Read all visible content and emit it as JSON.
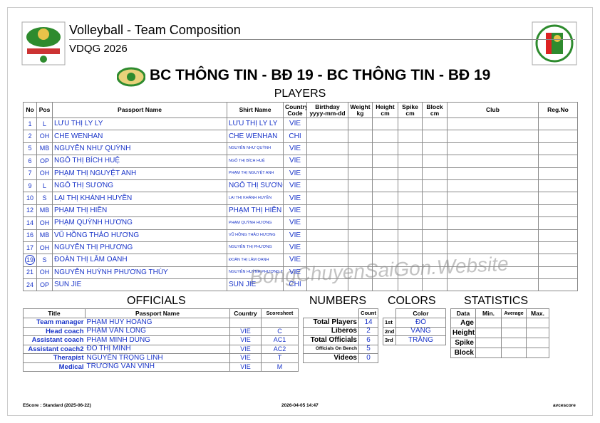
{
  "header": {
    "title": "Volleyball - Team Composition",
    "subtitle": "VDQG 2026",
    "team": "BC THÔNG TIN - BĐ 19 - BC THÔNG TIN - BĐ 19"
  },
  "players": {
    "title": "PLAYERS",
    "columns": [
      "No",
      "Pos",
      "Passport Name",
      "Shirt Name",
      "Country Code",
      "Birthday yyyy-mm-dd",
      "Weight kg",
      "Height cm",
      "Spike cm",
      "Block cm",
      "Club",
      "Reg.No"
    ],
    "rows": [
      {
        "no": 1,
        "pos": "L",
        "passport_name": "LƯU THỊ LY LY",
        "shirt_name": "LƯU THỊ LY LY",
        "country": "VIE"
      },
      {
        "no": 2,
        "pos": "OH",
        "passport_name": "CHE WENHAN",
        "shirt_name": "CHE WENHAN",
        "country": "CHI"
      },
      {
        "no": 5,
        "pos": "MB",
        "passport_name": "NGUYỄN NHƯ QUỲNH",
        "shirt_name": "NGUYỄN NHƯ QUỲNH",
        "country": "VIE"
      },
      {
        "no": 6,
        "pos": "OP",
        "passport_name": "NGÔ THỊ BÍCH HUỆ",
        "shirt_name": "NGÔ THỊ BÍCH HUỆ",
        "country": "VIE"
      },
      {
        "no": 7,
        "pos": "OH",
        "passport_name": "PHẠM THỊ NGUYỆT ANH",
        "shirt_name": "PHẠM THỊ NGUYỆT ANH",
        "country": "VIE"
      },
      {
        "no": 9,
        "pos": "L",
        "passport_name": "NGÔ THỊ SƯƠNG",
        "shirt_name": "NGÔ THỊ SƯƠNG",
        "country": "VIE"
      },
      {
        "no": 10,
        "pos": "S",
        "passport_name": "LẠI THỊ KHÁNH HUYỀN",
        "shirt_name": "LẠI THỊ KHÁNH HUYỀN",
        "country": "VIE"
      },
      {
        "no": 12,
        "pos": "MB",
        "passport_name": "PHẠM THỊ HIỀN",
        "shirt_name": "PHẠM THỊ HIỀN",
        "country": "VIE"
      },
      {
        "no": 14,
        "pos": "OH",
        "passport_name": "PHẠM QUỲNH HƯƠNG",
        "shirt_name": "PHẠM QUỲNH HƯƠNG",
        "country": "VIE"
      },
      {
        "no": 16,
        "pos": "MB",
        "passport_name": "VŨ HỒNG THẢO HƯƠNG",
        "shirt_name": "VŨ HỒNG THẢO HƯƠNG",
        "country": "VIE"
      },
      {
        "no": 17,
        "pos": "OH",
        "passport_name": "NGUYỄN THỊ PHƯƠNG",
        "shirt_name": "NGUYỄN THỊ PHƯƠNG",
        "country": "VIE"
      },
      {
        "no": 19,
        "pos": "S",
        "passport_name": "ĐOÀN THỊ LÂM OANH",
        "shirt_name": "ĐOÀN THỊ LÂM OANH",
        "country": "VIE",
        "captain": true
      },
      {
        "no": 21,
        "pos": "OH",
        "passport_name": "NGUYỄN HUỲNH PHƯƠNG THÙY",
        "shirt_name": "NGUYỄN HUỲNH PHƯƠNG THÙY",
        "country": "VIE"
      },
      {
        "no": 24,
        "pos": "OP",
        "passport_name": "SUN JIE",
        "shirt_name": "SUN JIE",
        "country": "CHI"
      }
    ]
  },
  "watermark": "BongChuyenSaiGon.Website",
  "officials": {
    "title": "OFFICIALS",
    "columns": [
      "Title",
      "Passport Name",
      "Country",
      "Scoresheet"
    ],
    "rows": [
      {
        "title": "Team manager",
        "passport_name": "PHẠM HUY HOÀNG"
      },
      {
        "title": "Head coach",
        "passport_name": "PHẠM VĂN LONG",
        "country": "VIE",
        "scoresheet": "C"
      },
      {
        "title": "Assistant coach",
        "passport_name": "PHẠM MINH DŨNG",
        "country": "VIE",
        "scoresheet": "AC1"
      },
      {
        "title": "Assistant coach2",
        "passport_name": "ĐỖ THỊ MINH",
        "country": "VIE",
        "scoresheet": "AC2"
      },
      {
        "title": "Therapist",
        "passport_name": "NGUYỄN TRỌNG LINH",
        "country": "VIE",
        "scoresheet": "T"
      },
      {
        "title": "Medical",
        "passport_name": "TRƯƠNG VĂN VĨNH",
        "country": "VIE",
        "scoresheet": "M"
      }
    ]
  },
  "numbers": {
    "title": "NUMBERS",
    "column": "Count",
    "rows": [
      {
        "label": "Total Players",
        "count": 14
      },
      {
        "label": "Liberos",
        "count": 2
      },
      {
        "label": "Total Officials",
        "count": 6
      },
      {
        "label": "Officials On Bench",
        "count": 5
      },
      {
        "label": "Videos",
        "count": 0
      }
    ]
  },
  "colors": {
    "title": "COLORS",
    "column": "Color",
    "rows": [
      {
        "rank": "1st",
        "color": "ĐỎ"
      },
      {
        "rank": "2nd",
        "color": "VÀNG"
      },
      {
        "rank": "3rd",
        "color": "TRẮNG"
      }
    ]
  },
  "statistics": {
    "title": "STATISTICS",
    "columns": [
      "Data",
      "Min.",
      "Average",
      "Max."
    ],
    "rows": [
      "Age",
      "Height",
      "Spike",
      "Block"
    ]
  },
  "footer": {
    "left": "EScore : Standard (2025-06-22)",
    "center": "2026-04-05 14:47",
    "right": "avcescore"
  }
}
